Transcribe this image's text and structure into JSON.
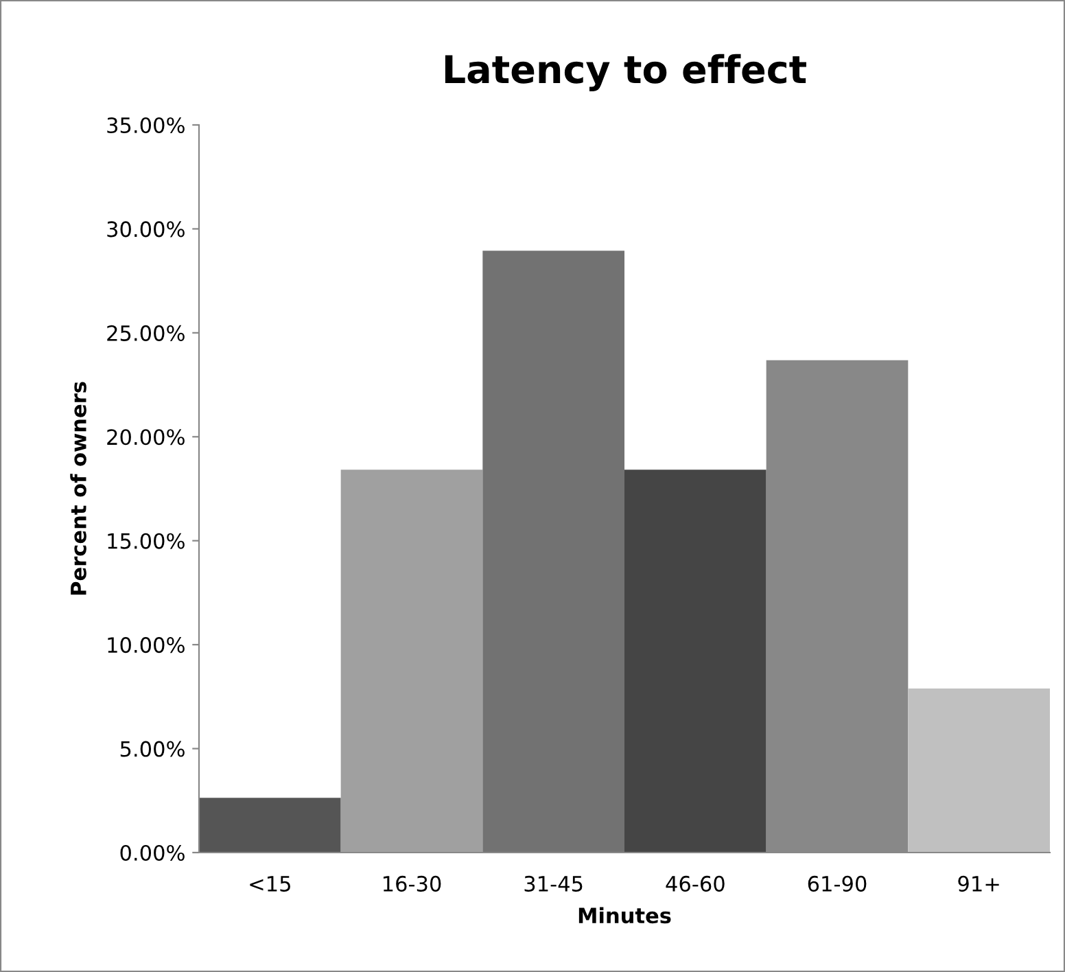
{
  "chart_data": {
    "type": "bar",
    "title": "Latency to effect",
    "xlabel": "Minutes",
    "ylabel": "Percent of owners",
    "categories": [
      "<15",
      "16-30",
      "31-45",
      "46-60",
      "61-90",
      "91+"
    ],
    "values": [
      2.63,
      18.42,
      28.95,
      18.42,
      23.68,
      7.89
    ],
    "colors": [
      "#555555",
      "#a0a0a0",
      "#727272",
      "#454545",
      "#888888",
      "#c0c0c0"
    ],
    "ylim": [
      0,
      35
    ],
    "yticks": [
      {
        "value": 0,
        "label": "0.00%"
      },
      {
        "value": 5,
        "label": "5.00%"
      },
      {
        "value": 10,
        "label": "10.00%"
      },
      {
        "value": 15,
        "label": "15.00%"
      },
      {
        "value": 20,
        "label": "20.00%"
      },
      {
        "value": 25,
        "label": "25.00%"
      },
      {
        "value": 30,
        "label": "30.00%"
      },
      {
        "value": 35,
        "label": "35.00%"
      }
    ],
    "grid": false
  }
}
